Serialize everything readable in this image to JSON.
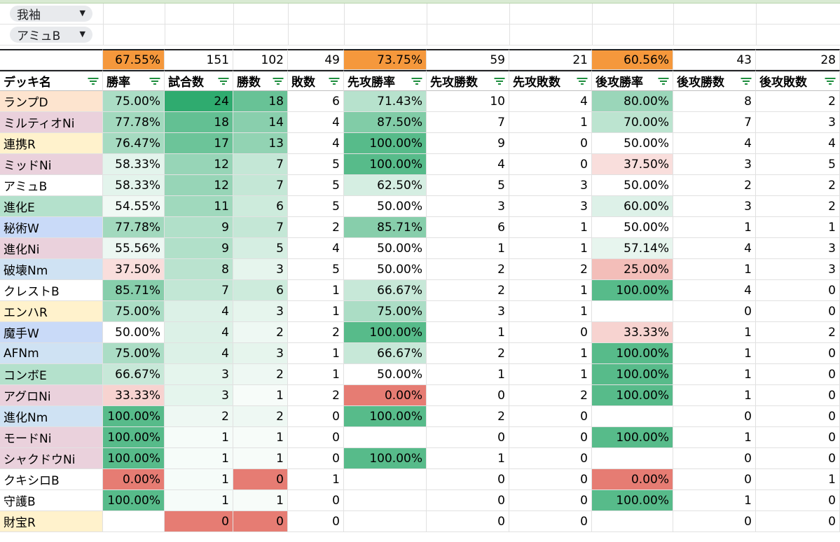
{
  "filters": [
    "我袖",
    "アミュB"
  ],
  "colors": {
    "summary_orange": "#f5983c",
    "deck_D": "#fde4cf",
    "deck_Ni": "#ead1dc",
    "deck_R": "#fff2cc",
    "deck_E": "#b4e1cc",
    "deck_W": "#c9daf8",
    "deck_Nm": "#cfe2f3",
    "deck_B": "#ffffff"
  },
  "summary": [
    "",
    "67.55%",
    "151",
    "102",
    "49",
    "73.75%",
    "59",
    "21",
    "60.56%",
    "43",
    "28"
  ],
  "headers": [
    "デッキ名",
    "勝率",
    "試合数",
    "勝数",
    "敗数",
    "先攻勝率",
    "先攻勝数",
    "先攻敗数",
    "後攻勝率",
    "後攻勝数",
    "後攻敗数"
  ],
  "rows": [
    [
      "ランプD",
      "75.00%",
      "24",
      "18",
      "6",
      "71.43%",
      "10",
      "4",
      "80.00%",
      "8",
      "2"
    ],
    [
      "ミルティオNi",
      "77.78%",
      "18",
      "14",
      "4",
      "87.50%",
      "7",
      "1",
      "70.00%",
      "7",
      "3"
    ],
    [
      "連携R",
      "76.47%",
      "17",
      "13",
      "4",
      "100.00%",
      "9",
      "0",
      "50.00%",
      "4",
      "4"
    ],
    [
      "ミッドNi",
      "58.33%",
      "12",
      "7",
      "5",
      "100.00%",
      "4",
      "0",
      "37.50%",
      "3",
      "5"
    ],
    [
      "アミュB",
      "58.33%",
      "12",
      "7",
      "5",
      "62.50%",
      "5",
      "3",
      "50.00%",
      "2",
      "2"
    ],
    [
      "進化E",
      "54.55%",
      "11",
      "6",
      "5",
      "50.00%",
      "3",
      "3",
      "60.00%",
      "3",
      "2"
    ],
    [
      "秘術W",
      "77.78%",
      "9",
      "7",
      "2",
      "85.71%",
      "6",
      "1",
      "50.00%",
      "1",
      "1"
    ],
    [
      "進化Ni",
      "55.56%",
      "9",
      "5",
      "4",
      "50.00%",
      "1",
      "1",
      "57.14%",
      "4",
      "3"
    ],
    [
      "破壊Nm",
      "37.50%",
      "8",
      "3",
      "5",
      "50.00%",
      "2",
      "2",
      "25.00%",
      "1",
      "3"
    ],
    [
      "クレストB",
      "85.71%",
      "7",
      "6",
      "1",
      "66.67%",
      "2",
      "1",
      "100.00%",
      "4",
      "0"
    ],
    [
      "エンハR",
      "75.00%",
      "4",
      "3",
      "1",
      "75.00%",
      "3",
      "1",
      "",
      "0",
      "0"
    ],
    [
      "魔手W",
      "50.00%",
      "4",
      "2",
      "2",
      "100.00%",
      "1",
      "0",
      "33.33%",
      "1",
      "2"
    ],
    [
      "AFNm",
      "75.00%",
      "4",
      "3",
      "1",
      "66.67%",
      "2",
      "1",
      "100.00%",
      "1",
      "0"
    ],
    [
      "コンボE",
      "66.67%",
      "3",
      "2",
      "1",
      "50.00%",
      "1",
      "1",
      "100.00%",
      "1",
      "0"
    ],
    [
      "アグロNi",
      "33.33%",
      "3",
      "1",
      "2",
      "0.00%",
      "0",
      "2",
      "100.00%",
      "1",
      "0"
    ],
    [
      "進化Nm",
      "100.00%",
      "2",
      "2",
      "0",
      "100.00%",
      "2",
      "0",
      "",
      "0",
      "0"
    ],
    [
      "モードNi",
      "100.00%",
      "1",
      "1",
      "0",
      "",
      "0",
      "0",
      "100.00%",
      "1",
      "0"
    ],
    [
      "シャクドウNi",
      "100.00%",
      "1",
      "1",
      "0",
      "100.00%",
      "1",
      "0",
      "",
      "0",
      "0"
    ],
    [
      "クキシロB",
      "0.00%",
      "1",
      "0",
      "1",
      "",
      "0",
      "0",
      "0.00%",
      "0",
      "1"
    ],
    [
      "守護B",
      "100.00%",
      "1",
      "1",
      "0",
      "",
      "0",
      "0",
      "100.00%",
      "1",
      "0"
    ],
    [
      "財宝R",
      "",
      "0",
      "0",
      "0",
      "",
      "0",
      "0",
      "",
      "0",
      "0"
    ]
  ]
}
